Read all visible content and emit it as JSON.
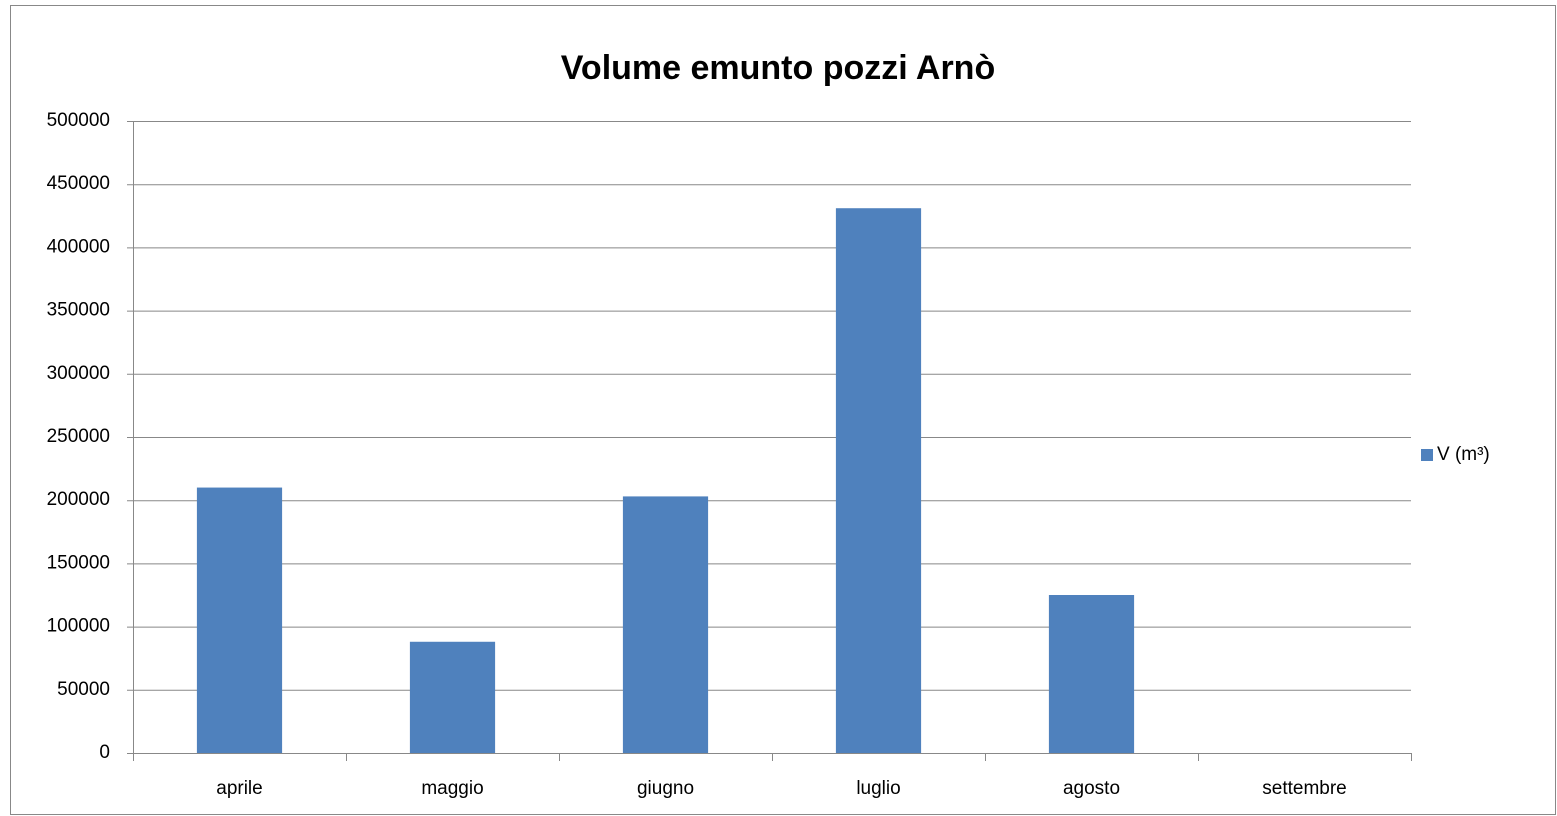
{
  "chart_data": {
    "type": "bar",
    "title": "Volume emunto pozzi Arnò",
    "categories": [
      "aprile",
      "maggio",
      "giugno",
      "luglio",
      "agosto",
      "settembre"
    ],
    "series": [
      {
        "name": "V (m³)",
        "color": "#4f81bd",
        "values": [
          210000,
          88000,
          203000,
          431000,
          125000,
          null
        ]
      }
    ],
    "ylim": [
      0,
      500000
    ],
    "yticks": [
      0,
      50000,
      100000,
      150000,
      200000,
      250000,
      300000,
      350000,
      400000,
      450000,
      500000
    ],
    "grid": true,
    "legend": "right"
  }
}
